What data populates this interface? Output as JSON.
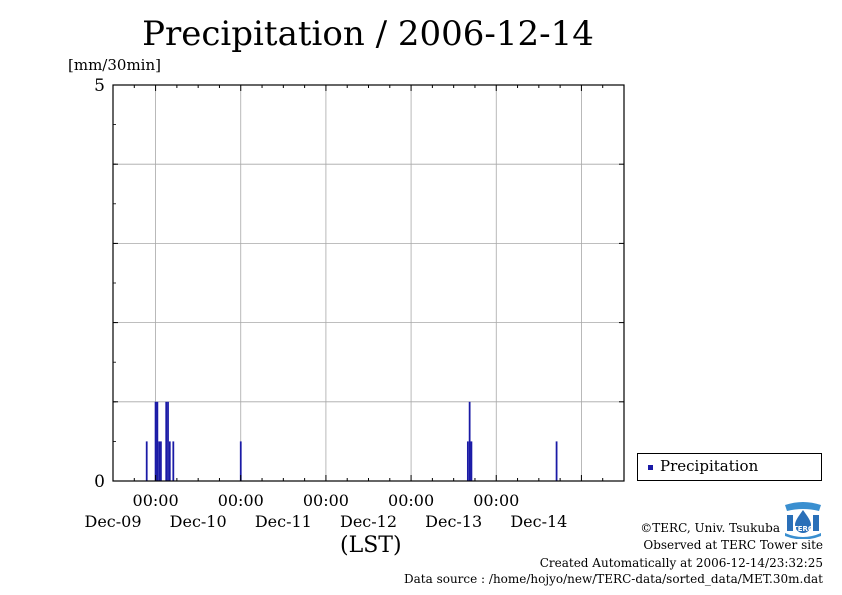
{
  "chart_data": {
    "type": "bar",
    "title": "Precipitation / 2006-12-14",
    "ylabel": "[mm/30min]",
    "xlabel": "(LST)",
    "ylim": [
      0,
      5
    ],
    "yticks": [
      0,
      1,
      2,
      3,
      4,
      5
    ],
    "ytick_labels": [
      "0",
      "5"
    ],
    "xlim_hours": [
      -48,
      96
    ],
    "xlim_dates": [
      "2006-12-08 12:00",
      "2006-12-14 12:00"
    ],
    "grid": true,
    "legend_position": "right",
    "series": [
      {
        "name": "Precipitation",
        "color": "#1a1aa6",
        "points": [
          {
            "time": "2006-12-08 21:30",
            "value": 0.5
          },
          {
            "time": "2006-12-09 00:00",
            "value": 1.0
          },
          {
            "time": "2006-12-09 00:30",
            "value": 1.0
          },
          {
            "time": "2006-12-09 01:00",
            "value": 0.5
          },
          {
            "time": "2006-12-09 01:30",
            "value": 0.5
          },
          {
            "time": "2006-12-09 03:00",
            "value": 1.0
          },
          {
            "time": "2006-12-09 03:30",
            "value": 1.0
          },
          {
            "time": "2006-12-09 04:00",
            "value": 0.5
          },
          {
            "time": "2006-12-09 05:00",
            "value": 0.5
          },
          {
            "time": "2006-12-10 00:00",
            "value": 0.5
          },
          {
            "time": "2006-12-12 16:00",
            "value": 0.5
          },
          {
            "time": "2006-12-12 16:30",
            "value": 1.0
          },
          {
            "time": "2006-12-12 17:00",
            "value": 0.5
          },
          {
            "time": "2006-12-13 17:00",
            "value": 0.5
          }
        ]
      }
    ],
    "x_ticks": [
      {
        "time": "2006-12-09 00:00",
        "time_label": "00:00",
        "date_label": "Dec-09"
      },
      {
        "time": "2006-12-10 00:00",
        "time_label": "00:00",
        "date_label": "Dec-10"
      },
      {
        "time": "2006-12-11 00:00",
        "time_label": "00:00",
        "date_label": "Dec-11"
      },
      {
        "time": "2006-12-12 00:00",
        "time_label": "00:00",
        "date_label": "Dec-12"
      },
      {
        "time": "2006-12-13 00:00",
        "time_label": "00:00",
        "date_label": "Dec-13"
      },
      {
        "time": "2006-12-14 00:00",
        "time_label": "",
        "date_label": "Dec-14"
      }
    ]
  },
  "legend": {
    "label": "Precipitation"
  },
  "credits": {
    "copyright": "©TERC, Univ. Tsukuba",
    "observed": "Observed at TERC Tower site",
    "created": "Created Automatically at 2006-12-14/23:32:25",
    "source": "Data source : /home/hojyo/new/TERC-data/sorted_data/MET.30m.dat"
  },
  "logo": {
    "text": "TERC"
  }
}
